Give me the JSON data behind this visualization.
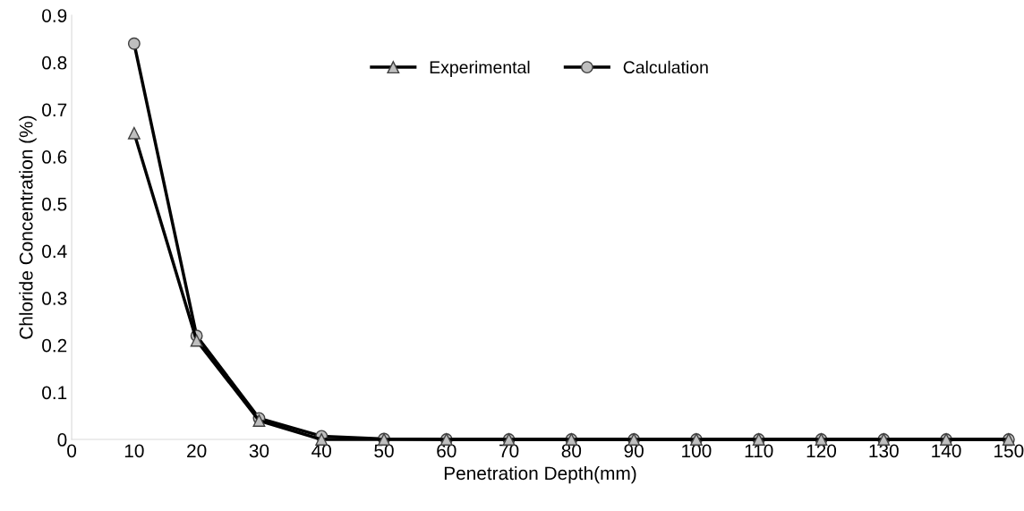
{
  "chart_data": {
    "type": "line",
    "xlabel": "Penetration Depth(mm)",
    "ylabel": "Chloride Concentration (%)",
    "x": [
      10,
      20,
      30,
      40,
      50,
      60,
      70,
      80,
      90,
      100,
      110,
      120,
      130,
      140,
      150
    ],
    "series": [
      {
        "name": "Experimental",
        "color": "#000000",
        "marker": "triangle",
        "values": [
          0.65,
          0.21,
          0.04,
          0.0,
          0.0,
          0.0,
          0.0,
          0.0,
          0.0,
          0.0,
          0.0,
          0.0,
          0.0,
          0.0,
          0.0
        ]
      },
      {
        "name": "Calculation",
        "color": "#000000",
        "marker": "circle",
        "values": [
          0.84,
          0.22,
          0.045,
          0.007,
          0.001,
          0.0,
          0.0,
          0.0,
          0.0,
          0.0,
          0.0,
          0.0,
          0.0,
          0.0,
          0.0
        ]
      }
    ],
    "xlim": [
      0,
      150
    ],
    "xticks": [
      0,
      10,
      20,
      30,
      40,
      50,
      60,
      70,
      80,
      90,
      100,
      110,
      120,
      130,
      140,
      150
    ],
    "ylim": [
      0,
      0.9
    ],
    "yticks": [
      0,
      0.1,
      0.2,
      0.3,
      0.4,
      0.5,
      0.6,
      0.7,
      0.8,
      0.9
    ],
    "grid": false,
    "legend": "top",
    "line_style": "solid"
  }
}
